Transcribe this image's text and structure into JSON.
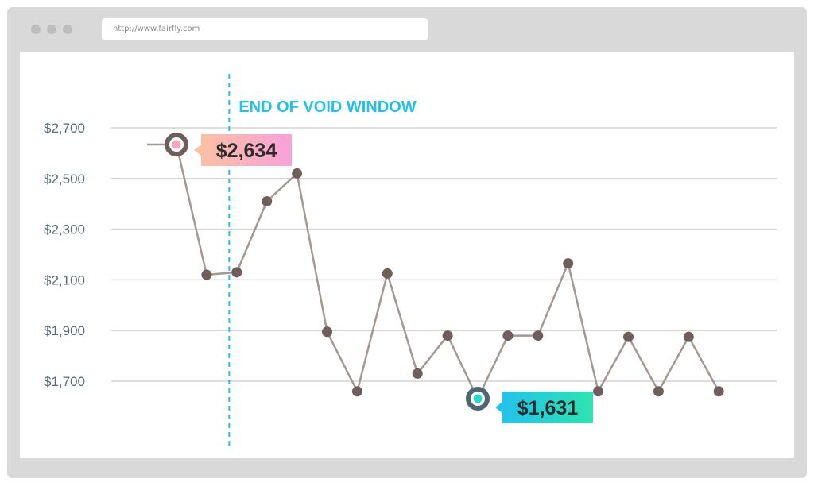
{
  "browser": {
    "url": "http://www.fairfly.com"
  },
  "chart_data": {
    "type": "line",
    "title": "",
    "xlabel": "",
    "ylabel": "",
    "y_ticks": [
      "$2,700",
      "$2,500",
      "$2,300",
      "$2,100",
      "$1,900",
      "$1,700"
    ],
    "y_tick_values": [
      2700,
      2500,
      2300,
      2100,
      1900,
      1700
    ],
    "ylim": [
      1600,
      2800
    ],
    "grid": true,
    "series": [
      {
        "values": [
          2634,
          2120,
          2130,
          2410,
          2520,
          1895,
          1660,
          2125,
          1730,
          1880,
          1631,
          1880,
          1880,
          2165,
          1660,
          1875,
          1660,
          1875,
          1660
        ]
      }
    ],
    "annotations": {
      "void_window": {
        "label": "END OF VOID WINDOW",
        "after_index": 1.75
      },
      "max_callout": {
        "label": "$2,634",
        "index": 0
      },
      "min_callout": {
        "label": "$1,631",
        "index": 10
      }
    },
    "colors": {
      "line": "#a39892",
      "point": "#6e5e5c",
      "grid": "#d4d4d4",
      "void_line": "#22c1ea",
      "max_gradient": [
        "#fdc2a0",
        "#f8a2d8"
      ],
      "min_gradient": [
        "#22c0ef",
        "#2ee3b0"
      ],
      "max_point_center": "#f7a6bd",
      "min_point_center": "#2ad8cf"
    }
  }
}
